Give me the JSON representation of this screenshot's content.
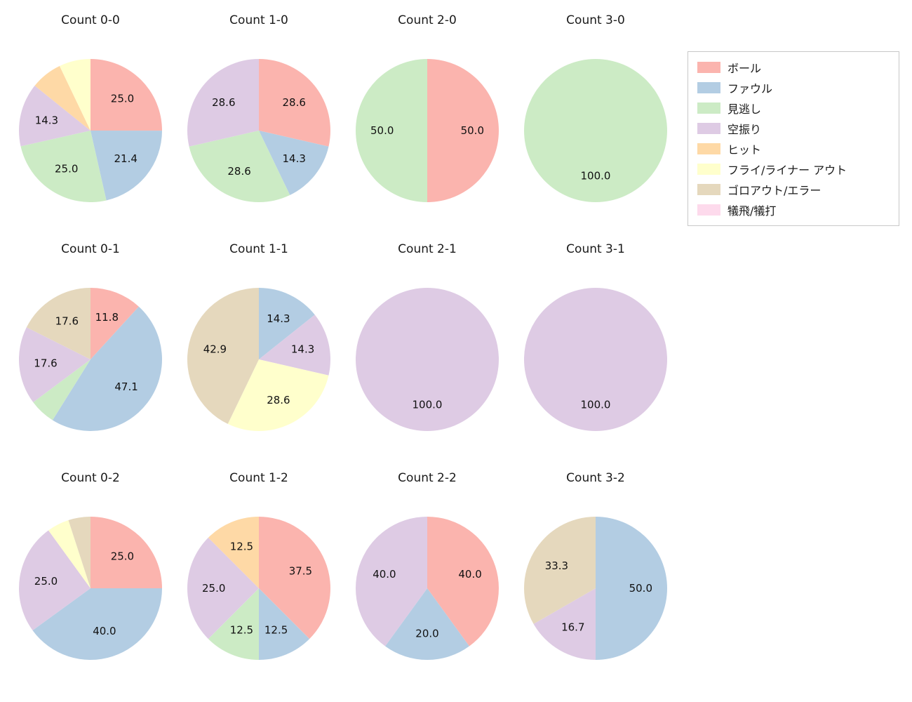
{
  "legend": {
    "items": [
      {
        "label": "ボール",
        "color": "#fbb4ae"
      },
      {
        "label": "ファウル",
        "color": "#b3cde3"
      },
      {
        "label": "見逃し",
        "color": "#ccebc5"
      },
      {
        "label": "空振り",
        "color": "#decbe4"
      },
      {
        "label": "ヒット",
        "color": "#fed9a6"
      },
      {
        "label": "フライ/ライナー アウト",
        "color": "#ffffcc"
      },
      {
        "label": "ゴロアウト/エラー",
        "color": "#e5d8bd"
      },
      {
        "label": "犠飛/犠打",
        "color": "#fddaec"
      }
    ]
  },
  "chart_data": [
    {
      "type": "pie",
      "title": "Count 0-0",
      "start_angle": "top",
      "direction": "clockwise",
      "slices": [
        {
          "category": "ボール",
          "value": 25.0,
          "label": "25.0"
        },
        {
          "category": "ファウル",
          "value": 21.4,
          "label": "21.4"
        },
        {
          "category": "見逃し",
          "value": 25.0,
          "label": "25.0"
        },
        {
          "category": "空振り",
          "value": 14.3,
          "label": "14.3"
        },
        {
          "category": "ヒット",
          "value": 7.1,
          "label": ""
        },
        {
          "category": "フライ/ライナー アウト",
          "value": 7.1,
          "label": ""
        }
      ]
    },
    {
      "type": "pie",
      "title": "Count 1-0",
      "start_angle": "top",
      "direction": "clockwise",
      "slices": [
        {
          "category": "ボール",
          "value": 28.6,
          "label": "28.6"
        },
        {
          "category": "ファウル",
          "value": 14.3,
          "label": "14.3"
        },
        {
          "category": "見逃し",
          "value": 28.6,
          "label": "28.6"
        },
        {
          "category": "空振り",
          "value": 28.6,
          "label": "28.6"
        }
      ]
    },
    {
      "type": "pie",
      "title": "Count 2-0",
      "start_angle": "top",
      "direction": "clockwise",
      "slices": [
        {
          "category": "ボール",
          "value": 50.0,
          "label": "50.0"
        },
        {
          "category": "見逃し",
          "value": 50.0,
          "label": "50.0"
        }
      ]
    },
    {
      "type": "pie",
      "title": "Count 3-0",
      "start_angle": "top",
      "direction": "clockwise",
      "slices": [
        {
          "category": "見逃し",
          "value": 100.0,
          "label": "100.0"
        }
      ]
    },
    {
      "type": "pie",
      "title": "Count 0-1",
      "start_angle": "top",
      "direction": "clockwise",
      "slices": [
        {
          "category": "ボール",
          "value": 11.8,
          "label": "11.8"
        },
        {
          "category": "ファウル",
          "value": 47.1,
          "label": "47.1"
        },
        {
          "category": "見逃し",
          "value": 5.9,
          "label": ""
        },
        {
          "category": "空振り",
          "value": 17.6,
          "label": "17.6"
        },
        {
          "category": "ゴロアウト/エラー",
          "value": 17.6,
          "label": "17.6"
        }
      ]
    },
    {
      "type": "pie",
      "title": "Count 1-1",
      "start_angle": "top",
      "direction": "clockwise",
      "slices": [
        {
          "category": "ファウル",
          "value": 14.3,
          "label": "14.3"
        },
        {
          "category": "空振り",
          "value": 14.3,
          "label": "14.3"
        },
        {
          "category": "フライ/ライナー アウト",
          "value": 28.6,
          "label": "28.6"
        },
        {
          "category": "ゴロアウト/エラー",
          "value": 42.9,
          "label": "42.9"
        }
      ]
    },
    {
      "type": "pie",
      "title": "Count 2-1",
      "start_angle": "top",
      "direction": "clockwise",
      "slices": [
        {
          "category": "空振り",
          "value": 100.0,
          "label": "100.0"
        }
      ]
    },
    {
      "type": "pie",
      "title": "Count 3-1",
      "start_angle": "top",
      "direction": "clockwise",
      "slices": [
        {
          "category": "空振り",
          "value": 100.0,
          "label": "100.0"
        }
      ]
    },
    {
      "type": "pie",
      "title": "Count 0-2",
      "start_angle": "top",
      "direction": "clockwise",
      "slices": [
        {
          "category": "ボール",
          "value": 25.0,
          "label": "25.0"
        },
        {
          "category": "ファウル",
          "value": 40.0,
          "label": "40.0"
        },
        {
          "category": "空振り",
          "value": 25.0,
          "label": "25.0"
        },
        {
          "category": "フライ/ライナー アウト",
          "value": 5.0,
          "label": ""
        },
        {
          "category": "ゴロアウト/エラー",
          "value": 5.0,
          "label": ""
        }
      ]
    },
    {
      "type": "pie",
      "title": "Count 1-2",
      "start_angle": "top",
      "direction": "clockwise",
      "slices": [
        {
          "category": "ボール",
          "value": 37.5,
          "label": "37.5"
        },
        {
          "category": "ファウル",
          "value": 12.5,
          "label": "12.5"
        },
        {
          "category": "見逃し",
          "value": 12.5,
          "label": "12.5"
        },
        {
          "category": "空振り",
          "value": 25.0,
          "label": "25.0"
        },
        {
          "category": "ヒット",
          "value": 12.5,
          "label": "12.5"
        }
      ]
    },
    {
      "type": "pie",
      "title": "Count 2-2",
      "start_angle": "top",
      "direction": "clockwise",
      "slices": [
        {
          "category": "ボール",
          "value": 40.0,
          "label": "40.0"
        },
        {
          "category": "ファウル",
          "value": 20.0,
          "label": "20.0"
        },
        {
          "category": "空振り",
          "value": 40.0,
          "label": "40.0"
        }
      ]
    },
    {
      "type": "pie",
      "title": "Count 3-2",
      "start_angle": "top",
      "direction": "clockwise",
      "slices": [
        {
          "category": "ファウル",
          "value": 50.0,
          "label": "50.0"
        },
        {
          "category": "空振り",
          "value": 16.7,
          "label": "16.7"
        },
        {
          "category": "ゴロアウト/エラー",
          "value": 33.3,
          "label": "33.3"
        }
      ]
    }
  ]
}
